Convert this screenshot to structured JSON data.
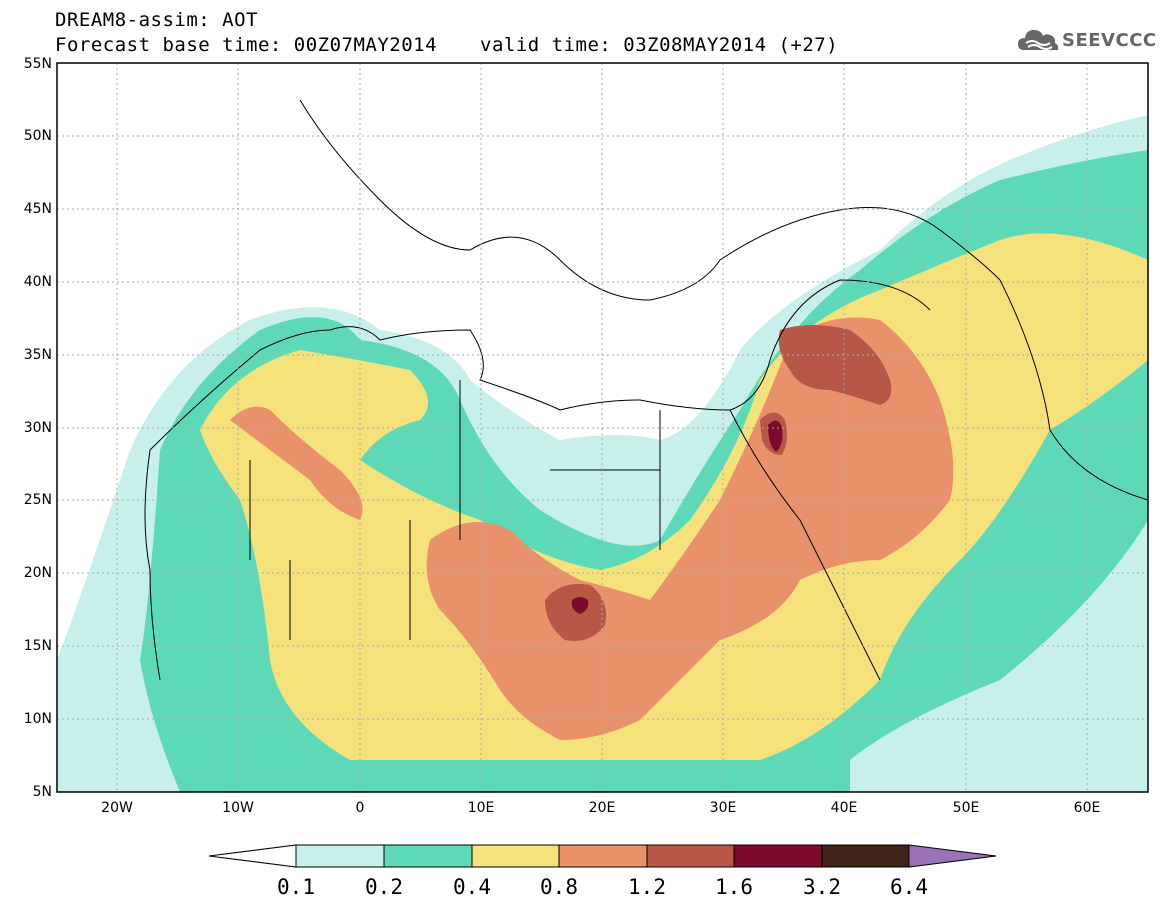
{
  "header": {
    "line1": "DREAM8-assim: AOT",
    "line2a": "Forecast base time: 00Z07MAY2014",
    "line2b": "valid time: 03Z08MAY2014 (+27)"
  },
  "logo": {
    "text": "SEEVCCC",
    "icon": "cloud-icon"
  },
  "map": {
    "region": "North Africa, Mediterranean and Middle East",
    "lon_range": [
      -25,
      65
    ],
    "lat_range": [
      5,
      55
    ],
    "lat_ticks": [
      "55N",
      "50N",
      "45N",
      "40N",
      "35N",
      "30N",
      "25N",
      "20N",
      "15N",
      "10N",
      "5N"
    ],
    "lon_ticks": [
      "20W",
      "10W",
      "0",
      "10E",
      "20E",
      "30E",
      "40E",
      "50E",
      "60E"
    ]
  },
  "colorbar": {
    "labels": [
      "0.1",
      "0.2",
      "0.4",
      "0.8",
      "1.2",
      "1.6",
      "3.2",
      "6.4"
    ],
    "colors": [
      "#ffffff",
      "#c8f0ea",
      "#5ed9b8",
      "#f6e27a",
      "#e9916a",
      "#b85647",
      "#7d0a2a",
      "#3d2416",
      "#9a72b8"
    ]
  }
}
